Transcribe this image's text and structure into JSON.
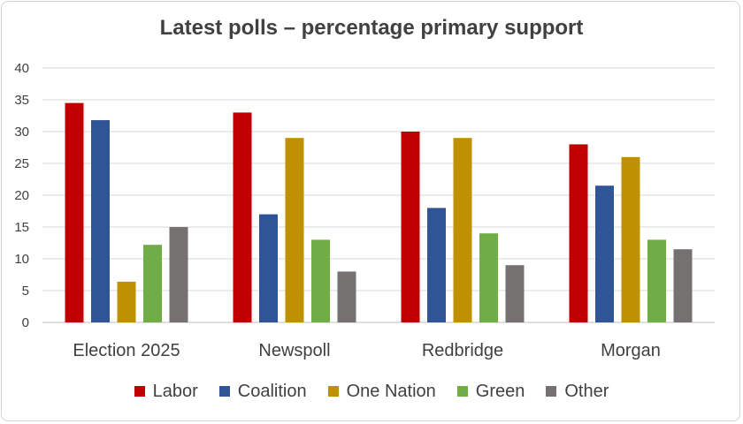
{
  "chart_data": {
    "type": "bar",
    "title": "Latest polls – percentage primary support",
    "xlabel": "",
    "ylabel": "",
    "ylim": [
      0,
      40
    ],
    "yticks": [
      0,
      5,
      10,
      15,
      20,
      25,
      30,
      35,
      40
    ],
    "grid": "horizontal",
    "legend_position": "bottom",
    "categories": [
      "Election 2025",
      "Newspoll",
      "Redbridge",
      "Morgan"
    ],
    "series": [
      {
        "name": "Labor",
        "color": "#c00000",
        "values": [
          34.5,
          33,
          30,
          28
        ]
      },
      {
        "name": "Coalition",
        "color": "#2f5597",
        "values": [
          31.8,
          17,
          18,
          21.5
        ]
      },
      {
        "name": "One Nation",
        "color": "#bf9000",
        "values": [
          6.4,
          29,
          29,
          26
        ]
      },
      {
        "name": "Green",
        "color": "#70ad47",
        "values": [
          12.2,
          13,
          14,
          13
        ]
      },
      {
        "name": "Other",
        "color": "#767171",
        "values": [
          15,
          8,
          9,
          11.5
        ]
      }
    ]
  }
}
